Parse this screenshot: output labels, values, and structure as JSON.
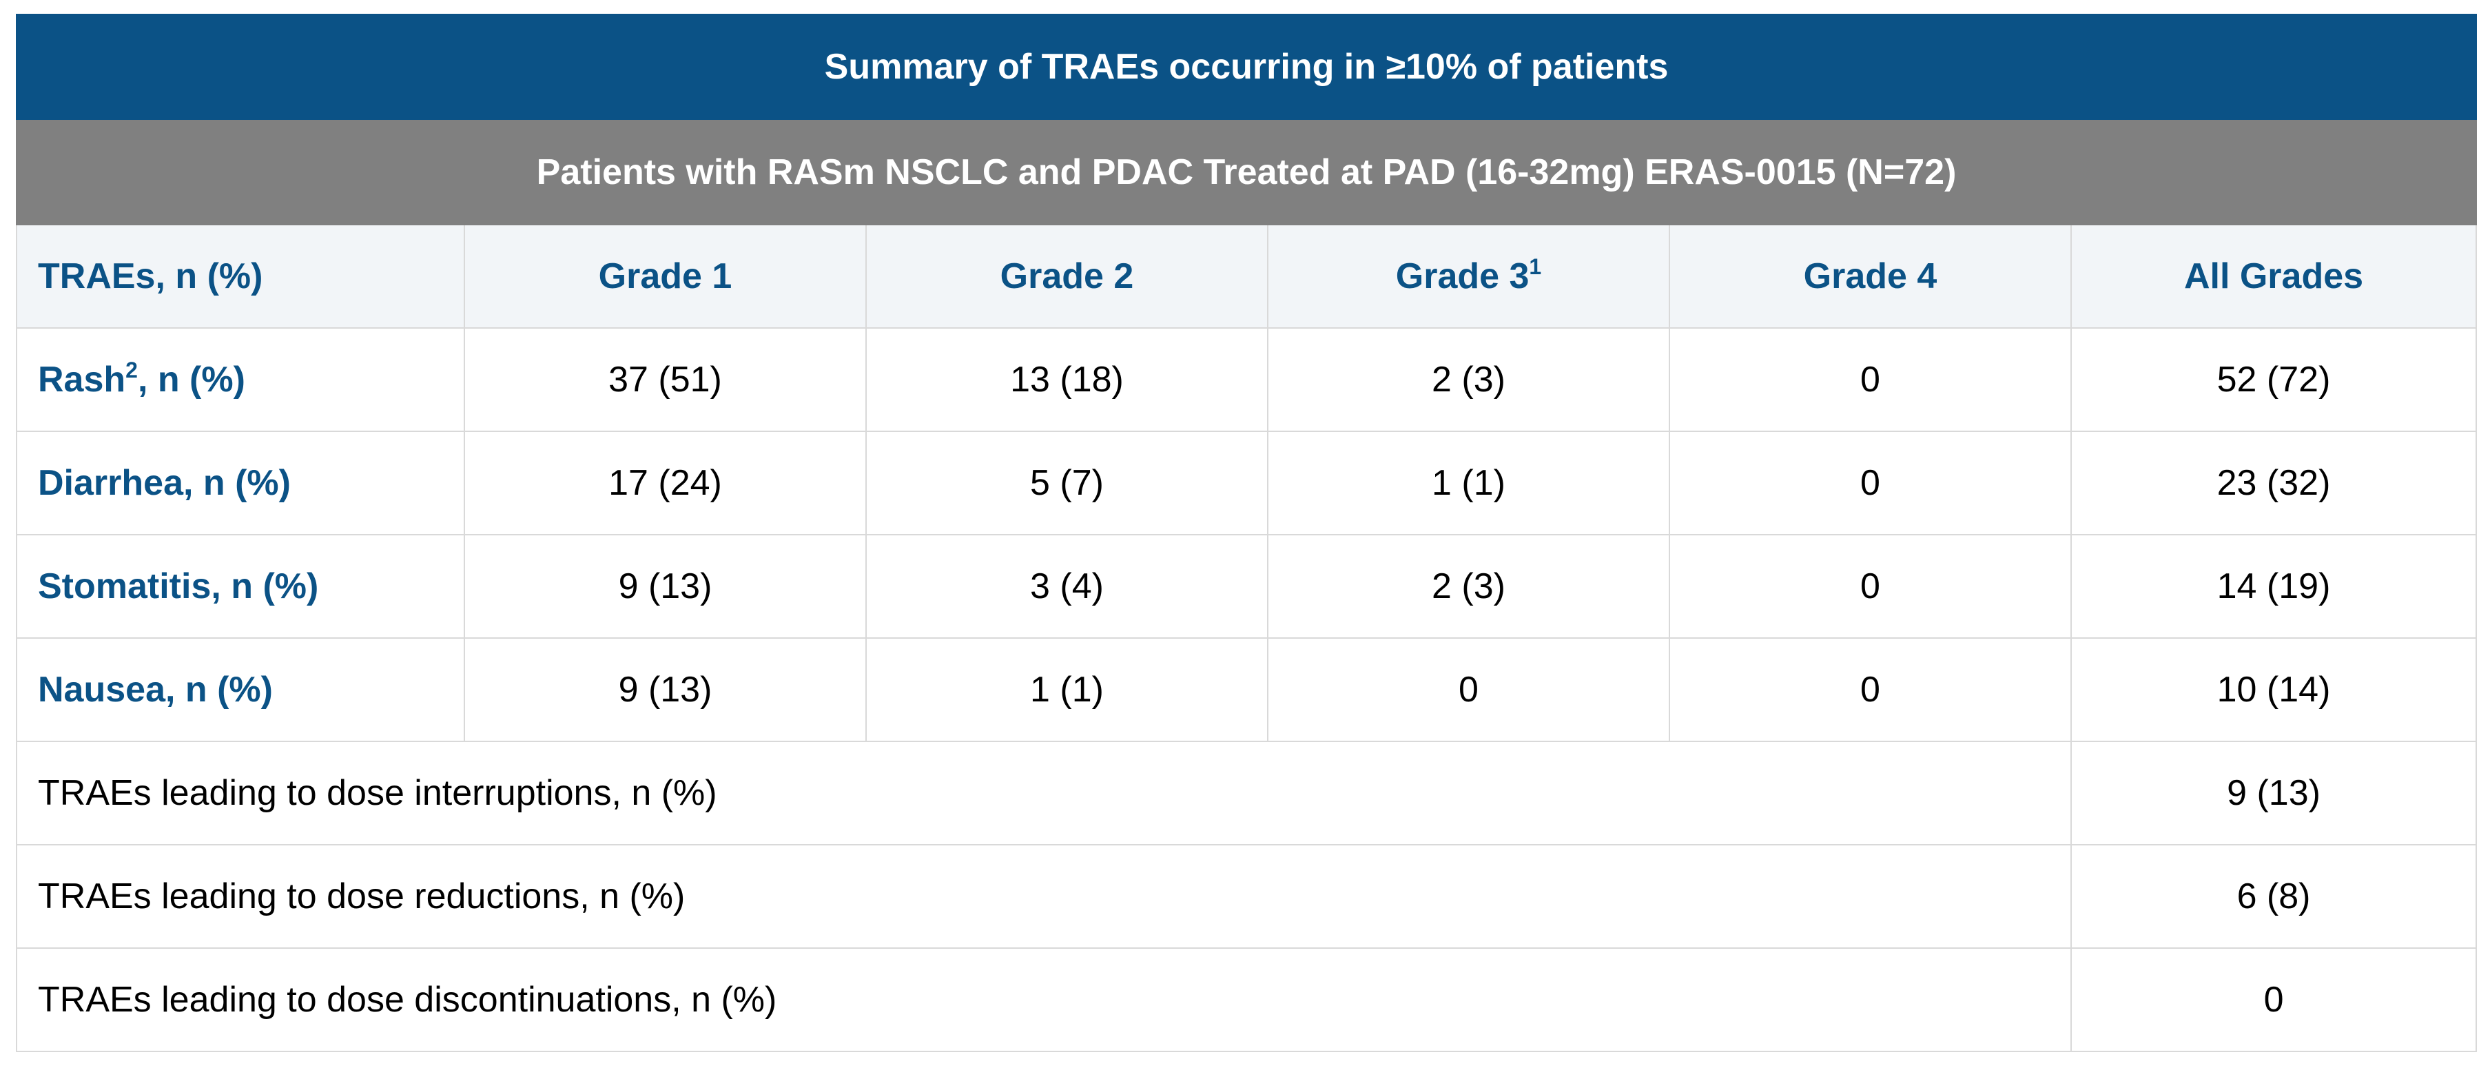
{
  "title": "Summary of TRAEs occurring in ≥10% of patients",
  "subtitle": "Patients with RASm NSCLC and PDAC Treated at PAD (16-32mg) ERAS-0015 (N=72)",
  "columns": {
    "label": "TRAEs, n (%)",
    "grade1": "Grade 1",
    "grade2": "Grade 2",
    "grade3": "Grade 3",
    "grade3_sup": "1",
    "grade4": "Grade 4",
    "all": "All Grades"
  },
  "rows": [
    {
      "name": "Rash",
      "sup": "2",
      "suffix": ", n (%)",
      "g1": "37 (51)",
      "g2": "13 (18)",
      "g3": "2 (3)",
      "g4": "0",
      "all": "52 (72)"
    },
    {
      "name": "Diarrhea, n (%)",
      "g1": "17 (24)",
      "g2": "5 (7)",
      "g3": "1 (1)",
      "g4": "0",
      "all": "23 (32)"
    },
    {
      "name": "Stomatitis, n (%)",
      "g1": "9 (13)",
      "g2": "3 (4)",
      "g3": "2 (3)",
      "g4": "0",
      "all": "14 (19)"
    },
    {
      "name": "Nausea, n (%)",
      "g1": "9 (13)",
      "g2": "1 (1)",
      "g3": "0",
      "g4": "0",
      "all": "10 (14)"
    }
  ],
  "summary": [
    {
      "label": "TRAEs leading to dose interruptions, n (%)",
      "value": "9 (13)"
    },
    {
      "label": "TRAEs leading to dose reductions, n (%)",
      "value": "6 (8)"
    },
    {
      "label": "TRAEs leading to dose discontinuations, n (%)",
      "value": "0"
    }
  ],
  "colors": {
    "title_bg": "#0b5286",
    "subtitle_bg": "#808080",
    "header_bg": "#f2f5f8",
    "label_text": "#0b5286",
    "border": "#d9d9d9"
  }
}
